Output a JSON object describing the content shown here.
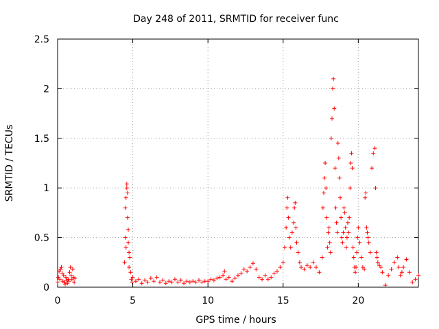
{
  "chart_data": {
    "type": "scatter",
    "title": "Day 248 of 2011, SRMTID for receiver func",
    "xlabel": "GPS time / hours",
    "ylabel": "SRMTID / TECUs",
    "xlim": [
      0,
      24
    ],
    "ylim": [
      0,
      2.5
    ],
    "xticks": [
      0,
      5,
      10,
      15,
      20
    ],
    "xtick_labels": [
      "0",
      "5",
      "10",
      "15",
      "20"
    ],
    "yticks": [
      0,
      0.5,
      1,
      1.5,
      2,
      2.5
    ],
    "ytick_labels": [
      "0",
      "0.5",
      "1",
      "1.5",
      "2",
      "2.5"
    ],
    "grid": true,
    "marker": "+",
    "series": [
      {
        "name": "SRMTID",
        "color": "#ff0000",
        "x": [
          0.0,
          0.05,
          0.1,
          0.15,
          0.2,
          0.25,
          0.3,
          0.35,
          0.4,
          0.45,
          0.5,
          0.55,
          0.6,
          0.65,
          0.7,
          0.75,
          0.8,
          0.85,
          0.9,
          0.95,
          1.0,
          1.05,
          1.1,
          1.15,
          4.45,
          4.5,
          4.5,
          4.55,
          4.55,
          4.6,
          4.6,
          4.65,
          4.65,
          4.7,
          4.7,
          4.75,
          4.75,
          4.8,
          4.85,
          4.9,
          4.95,
          5.0,
          5.2,
          5.4,
          5.6,
          5.8,
          6.0,
          6.2,
          6.4,
          6.6,
          6.8,
          7.0,
          7.2,
          7.4,
          7.6,
          7.8,
          8.0,
          8.2,
          8.4,
          8.6,
          8.8,
          9.0,
          9.2,
          9.4,
          9.6,
          9.8,
          10.0,
          10.2,
          10.4,
          10.6,
          10.8,
          11.0,
          11.1,
          11.2,
          11.4,
          11.6,
          11.8,
          12.0,
          12.2,
          12.4,
          12.6,
          12.8,
          13.0,
          13.2,
          13.4,
          13.6,
          13.8,
          14.0,
          14.2,
          14.4,
          14.6,
          14.8,
          15.0,
          15.1,
          15.2,
          15.25,
          15.3,
          15.35,
          15.4,
          15.5,
          15.6,
          15.7,
          15.75,
          15.8,
          15.85,
          15.9,
          16.0,
          16.1,
          16.2,
          16.4,
          16.6,
          16.8,
          17.0,
          17.2,
          17.4,
          17.6,
          17.65,
          17.7,
          17.75,
          17.8,
          17.85,
          17.9,
          17.95,
          18.0,
          18.05,
          18.1,
          18.15,
          18.2,
          18.25,
          18.3,
          18.35,
          18.4,
          18.45,
          18.5,
          18.55,
          18.6,
          18.65,
          18.7,
          18.75,
          18.8,
          18.85,
          18.9,
          18.95,
          19.0,
          19.05,
          19.1,
          19.15,
          19.2,
          19.25,
          19.3,
          19.35,
          19.4,
          19.45,
          19.5,
          19.55,
          19.6,
          19.65,
          19.7,
          19.75,
          19.8,
          19.85,
          19.9,
          19.95,
          20.0,
          20.1,
          20.2,
          20.3,
          20.4,
          20.45,
          20.5,
          20.55,
          20.6,
          20.65,
          20.7,
          20.8,
          20.9,
          21.0,
          21.1,
          21.15,
          21.2,
          21.25,
          21.3,
          21.4,
          21.5,
          21.6,
          21.8,
          22.0,
          22.2,
          22.4,
          22.6,
          22.7,
          22.8,
          22.9,
          23.0,
          23.2,
          23.4,
          23.6,
          23.8,
          24.0
        ],
        "y": [
          0.05,
          0.1,
          0.16,
          0.08,
          0.18,
          0.2,
          0.14,
          0.06,
          0.12,
          0.05,
          0.03,
          0.1,
          0.07,
          0.04,
          0.08,
          0.06,
          0.15,
          0.2,
          0.12,
          0.08,
          0.18,
          0.1,
          0.05,
          0.09,
          0.25,
          0.5,
          0.8,
          0.9,
          0.4,
          1.0,
          1.04,
          0.95,
          0.7,
          0.58,
          0.45,
          0.35,
          0.2,
          0.3,
          0.15,
          0.08,
          0.05,
          0.1,
          0.06,
          0.08,
          0.04,
          0.07,
          0.05,
          0.09,
          0.06,
          0.1,
          0.05,
          0.07,
          0.04,
          0.06,
          0.05,
          0.08,
          0.05,
          0.07,
          0.04,
          0.06,
          0.05,
          0.06,
          0.05,
          0.07,
          0.05,
          0.06,
          0.06,
          0.08,
          0.07,
          0.09,
          0.1,
          0.12,
          0.16,
          0.08,
          0.1,
          0.06,
          0.09,
          0.12,
          0.14,
          0.18,
          0.16,
          0.2,
          0.24,
          0.18,
          0.1,
          0.08,
          0.12,
          0.08,
          0.1,
          0.14,
          0.16,
          0.2,
          0.25,
          0.4,
          0.6,
          0.8,
          0.9,
          0.7,
          0.5,
          0.4,
          0.55,
          0.65,
          0.8,
          0.85,
          0.6,
          0.45,
          0.35,
          0.25,
          0.2,
          0.18,
          0.22,
          0.2,
          0.25,
          0.2,
          0.15,
          0.3,
          0.8,
          0.95,
          1.1,
          1.25,
          1.0,
          0.7,
          0.4,
          0.55,
          0.6,
          0.45,
          0.35,
          1.5,
          1.7,
          2.0,
          2.1,
          1.8,
          1.2,
          0.8,
          0.65,
          0.55,
          1.45,
          1.3,
          1.1,
          0.9,
          0.7,
          0.5,
          0.45,
          0.55,
          0.8,
          0.75,
          0.6,
          0.4,
          0.5,
          0.65,
          0.55,
          0.7,
          1.0,
          1.25,
          1.35,
          1.2,
          0.4,
          0.3,
          0.2,
          0.15,
          0.2,
          0.35,
          0.5,
          0.6,
          0.45,
          0.3,
          0.2,
          0.18,
          0.9,
          0.95,
          0.6,
          0.55,
          0.5,
          0.45,
          0.35,
          1.2,
          1.35,
          1.4,
          1.0,
          0.35,
          0.3,
          0.25,
          0.22,
          0.2,
          0.15,
          0.02,
          0.12,
          0.18,
          0.25,
          0.3,
          0.2,
          0.12,
          0.15,
          0.2,
          0.28,
          0.15,
          0.05,
          0.08,
          0.12
        ]
      }
    ]
  }
}
